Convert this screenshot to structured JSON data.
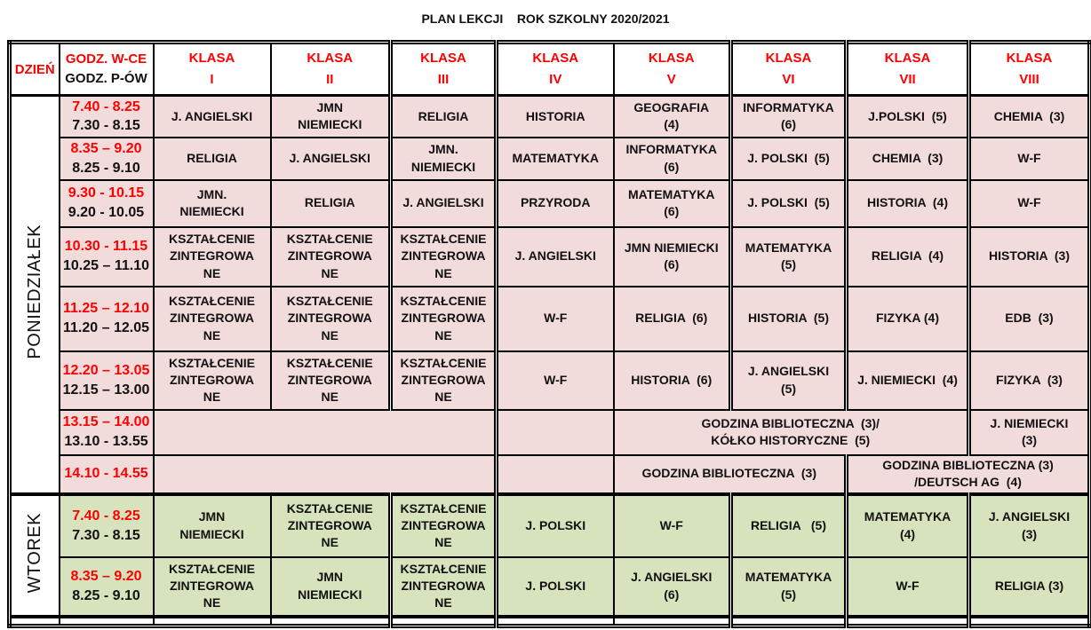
{
  "title": "PLAN LEKCJI    ROK SZKOLNY 2020/2021",
  "colors": {
    "pink_row_bg": "#f2dbdb",
    "green_row_bg": "#d6e3bc",
    "accent_red": "#ff0000",
    "border": "#000000"
  },
  "header": {
    "day_label": "DZIEŃ",
    "hours_label_top": "GODZ. W-CE",
    "hours_label_bottom": "GODZ. P-ÓW",
    "class_columns": [
      "KLASA\nI",
      "KLASA\nII",
      "KLASA\nIII",
      "KLASA\nIV",
      "KLASA\nV",
      "KLASA\nVI",
      "KLASA\nVII",
      "KLASA\nVIII"
    ]
  },
  "days": [
    {
      "name": "PONIEDZIAŁEK",
      "theme": "pink",
      "rows": [
        {
          "time_main": "7.40 - 8.25",
          "time_alt": "7.30 - 8.15",
          "cells": [
            {
              "t": "J. ANGIELSKI"
            },
            {
              "t": "JMN\nNIEMIECKI"
            },
            {
              "t": "RELIGIA"
            },
            {
              "t": "HISTORIA"
            },
            {
              "t": "GEOGRAFIA\n(4)"
            },
            {
              "t": "INFORMATYKA\n(6)"
            },
            {
              "t": "J.POLSKI  (5)"
            },
            {
              "t": "CHEMIA  (3)"
            }
          ]
        },
        {
          "time_main": "8.35 – 9.20",
          "time_alt": "8.25 - 9.10",
          "cells": [
            {
              "t": "RELIGIA"
            },
            {
              "t": "J. ANGIELSKI"
            },
            {
              "t": "JMN.\nNIEMIECKI"
            },
            {
              "t": "MATEMATYKA"
            },
            {
              "t": "INFORMATYKA\n(6)"
            },
            {
              "t": "J. POLSKI  (5)"
            },
            {
              "t": "CHEMIA  (3)"
            },
            {
              "t": "W-F"
            }
          ]
        },
        {
          "time_main": "9.30 - 10.15",
          "time_alt": "9.20 - 10.05",
          "cells": [
            {
              "t": "JMN.\nNIEMIECKI"
            },
            {
              "t": "RELIGIA"
            },
            {
              "t": "J. ANGIELSKI"
            },
            {
              "t": "PRZYRODA"
            },
            {
              "t": "MATEMATYKA\n(6)"
            },
            {
              "t": "J. POLSKI  (5)"
            },
            {
              "t": "HISTORIA  (4)"
            },
            {
              "t": "W-F"
            }
          ]
        },
        {
          "time_main": "10.30 - 11.15",
          "time_alt": "10.25 – 11.10",
          "cells": [
            {
              "t": "KSZTAŁCENIE\nZINTEGROWA\nNE"
            },
            {
              "t": "KSZTAŁCENIE\nZINTEGROWA\nNE"
            },
            {
              "t": "KSZTAŁCENIE\nZINTEGROWA\nNE"
            },
            {
              "t": "J. ANGIELSKI"
            },
            {
              "t": "JMN NIEMIECKI\n(6)"
            },
            {
              "t": "MATEMATYKA\n(5)"
            },
            {
              "t": "RELIGIA  (4)"
            },
            {
              "t": "HISTORIA  (3)"
            }
          ]
        },
        {
          "time_main": "11.25 – 12.10",
          "time_alt": "11.20 – 12.05",
          "cells": [
            {
              "t": "KSZTAŁCENIE\nZINTEGROWA\nNE"
            },
            {
              "t": "KSZTAŁCENIE\nZINTEGROWA\nNE"
            },
            {
              "t": "KSZTAŁCENIE\nZINTEGROWA\nNE"
            },
            {
              "t": "W-F"
            },
            {
              "t": "RELIGIA  (6)"
            },
            {
              "t": "HISTORIA  (5)"
            },
            {
              "t": "FIZYKA (4)"
            },
            {
              "t": "EDB  (3)"
            }
          ]
        },
        {
          "time_main": "12.20 – 13.05",
          "time_alt": "12.15 – 13.00",
          "cells": [
            {
              "t": "KSZTAŁCENIE\nZINTEGROWA\nNE"
            },
            {
              "t": "KSZTAŁCENIE\nZINTEGROWA\nNE"
            },
            {
              "t": "KSZTAŁCENIE\nZINTEGROWA\nNE"
            },
            {
              "t": "W-F"
            },
            {
              "t": "HISTORIA  (6)"
            },
            {
              "t": "J. ANGIELSKI\n(5)"
            },
            {
              "t": "J. NIEMIECKI  (4)"
            },
            {
              "t": "FIZYKA  (3)"
            }
          ]
        },
        {
          "time_main": "13.15 – 14.00",
          "time_alt": "13.10 - 13.55",
          "cells": [
            {
              "t": "",
              "span": 3
            },
            {
              "t": ""
            },
            {
              "t": "GODZINA BIBLIOTECZNA  (3)/\nKÓŁKO HISTORYCZNE  (5)",
              "span": 3
            },
            {
              "t": "J. NIEMIECKI\n(3)"
            }
          ]
        },
        {
          "time_main": "14.10 - 14.55",
          "time_alt": "",
          "cells": [
            {
              "t": "",
              "span": 3
            },
            {
              "t": ""
            },
            {
              "t": "GODZINA BIBLIOTECZNA  (3)",
              "span": 2
            },
            {
              "t": "GODZINA BIBLIOTECZNA (3)\n/DEUTSCH AG  (4)",
              "span": 2
            }
          ]
        }
      ]
    },
    {
      "name": "WTOREK",
      "theme": "green",
      "rows": [
        {
          "time_main": "7.40 - 8.25",
          "time_alt": "7.30 - 8.15",
          "cells": [
            {
              "t": "JMN\nNIEMIECKI"
            },
            {
              "t": "KSZTAŁCENIE\nZINTEGROWA\nNE"
            },
            {
              "t": "KSZTAŁCENIE\nZINTEGROWA\nNE"
            },
            {
              "t": "J. POLSKI"
            },
            {
              "t": "W-F"
            },
            {
              "t": "RELIGIA   (5)"
            },
            {
              "t": "MATEMATYKA\n(4)"
            },
            {
              "t": "J. ANGIELSKI\n(3)"
            }
          ]
        },
        {
          "time_main": "8.35 – 9.20",
          "time_alt": "8.25 - 9.10",
          "cells": [
            {
              "t": "KSZTAŁCENIE\nZINTEGROWA\nNE"
            },
            {
              "t": "JMN\nNIEMIECKI"
            },
            {
              "t": "KSZTAŁCENIE\nZINTEGROWA\nNE"
            },
            {
              "t": "J. POLSKI"
            },
            {
              "t": "J. ANGIELSKI\n(6)"
            },
            {
              "t": "MATEMATYKA\n(5)"
            },
            {
              "t": "W-F"
            },
            {
              "t": "RELIGIA (3)"
            }
          ]
        }
      ]
    }
  ]
}
